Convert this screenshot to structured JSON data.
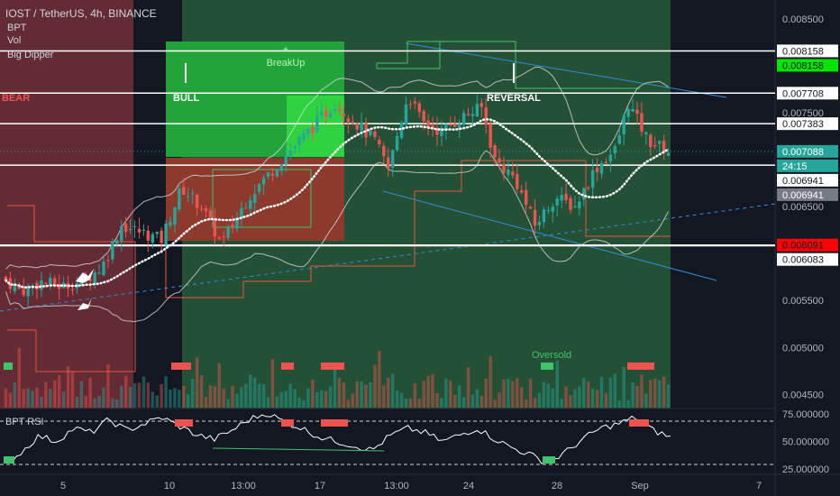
{
  "header": {
    "symbol_line": "IOST / TetherUS, 4h, BINANCE",
    "indicators": [
      "BPT",
      "Vol",
      "Big Dipper"
    ]
  },
  "annotations": {
    "bear": "BEAR",
    "bull": "BULL",
    "breakup_plus": "+",
    "breakup": "BreakUp",
    "reversal": "REVERSAL",
    "oversold": "Oversold"
  },
  "price_axis": {
    "ticks": [
      "0.008500",
      "0.007500",
      "0.006500",
      "0.005500",
      "0.005000",
      "0.004500"
    ],
    "levels": [
      {
        "value": "0.008158",
        "style": "outline"
      },
      {
        "value": "0.008158",
        "style": "green"
      },
      {
        "value": "0.007708",
        "style": "outline"
      },
      {
        "value": "0.007383",
        "style": "outline"
      },
      {
        "value": "0.007088",
        "style": "teal"
      },
      {
        "value": "24:15",
        "style": "teal"
      },
      {
        "value": "0.006941",
        "style": "outline"
      },
      {
        "value": "0.006941",
        "style": "gray"
      },
      {
        "value": "0.006091",
        "style": "red"
      },
      {
        "value": "0.006083",
        "style": "outline"
      }
    ]
  },
  "rsi_panel": {
    "title": "BPT RSI",
    "ticks": [
      "75.000000",
      "50.000000",
      "25.000000"
    ]
  },
  "time_axis": {
    "labels": [
      "5",
      "10",
      "13:00",
      "17",
      "13:00",
      "24",
      "28",
      "Sep",
      "7"
    ]
  },
  "colors": {
    "background": "#131722",
    "bull": "#26a69a",
    "bear": "#ef5350",
    "bear_zone": "#6d2d35",
    "bull_zone": "#285a3a",
    "breakup_box": "#22a43a",
    "breakup_box_light": "#2fd33f",
    "red_box": "#8c3a2e",
    "channel": "#2f8dd6",
    "level_line": "#ffffff"
  },
  "chart_data": {
    "type": "candlestick",
    "title": "IOST / TetherUS, 4h, BINANCE",
    "interval": "4h",
    "exchange": "BINANCE",
    "y_range": [
      0.00435,
      0.0087
    ],
    "last_price": 0.007088,
    "countdown": "24:15",
    "horizontal_levels": [
      0.008158,
      0.007708,
      0.007383,
      0.006941,
      0.006091,
      0.006083
    ],
    "close_path": [
      {
        "t": 0.0,
        "c": 0.00575
      },
      {
        "t": 0.03,
        "c": 0.0056
      },
      {
        "t": 0.06,
        "c": 0.0057
      },
      {
        "t": 0.09,
        "c": 0.00565
      },
      {
        "t": 0.12,
        "c": 0.0057
      },
      {
        "t": 0.15,
        "c": 0.00585
      },
      {
        "t": 0.18,
        "c": 0.0063
      },
      {
        "t": 0.2,
        "c": 0.00625
      },
      {
        "t": 0.24,
        "c": 0.00615
      },
      {
        "t": 0.27,
        "c": 0.0067
      },
      {
        "t": 0.3,
        "c": 0.0065
      },
      {
        "t": 0.33,
        "c": 0.0061
      },
      {
        "t": 0.37,
        "c": 0.0066
      },
      {
        "t": 0.42,
        "c": 0.007
      },
      {
        "t": 0.46,
        "c": 0.0073
      },
      {
        "t": 0.5,
        "c": 0.0076
      },
      {
        "t": 0.53,
        "c": 0.0074
      },
      {
        "t": 0.56,
        "c": 0.0072
      },
      {
        "t": 0.58,
        "c": 0.0069
      },
      {
        "t": 0.61,
        "c": 0.0077
      },
      {
        "t": 0.63,
        "c": 0.0074
      },
      {
        "t": 0.66,
        "c": 0.0073
      },
      {
        "t": 0.69,
        "c": 0.00745
      },
      {
        "t": 0.72,
        "c": 0.00755
      },
      {
        "t": 0.74,
        "c": 0.007
      },
      {
        "t": 0.77,
        "c": 0.0068
      },
      {
        "t": 0.8,
        "c": 0.0063
      },
      {
        "t": 0.83,
        "c": 0.0066
      },
      {
        "t": 0.86,
        "c": 0.0065
      },
      {
        "t": 0.89,
        "c": 0.0069
      },
      {
        "t": 0.92,
        "c": 0.0071
      },
      {
        "t": 0.94,
        "c": 0.0076
      },
      {
        "t": 0.97,
        "c": 0.0072
      },
      {
        "t": 1.0,
        "c": 0.00709
      }
    ],
    "rsi": {
      "name": "BPT RSI",
      "levels": [
        75,
        50,
        25
      ],
      "y_range": [
        20,
        80
      ],
      "values": [
        28,
        40,
        55,
        50,
        62,
        58,
        70,
        60,
        66,
        72,
        64,
        56,
        52,
        60,
        70,
        76,
        68,
        62,
        54,
        50,
        46,
        42,
        55,
        62,
        58,
        50,
        56,
        62,
        52,
        44,
        38,
        30,
        40,
        52,
        62,
        66,
        72,
        60,
        54
      ]
    }
  }
}
